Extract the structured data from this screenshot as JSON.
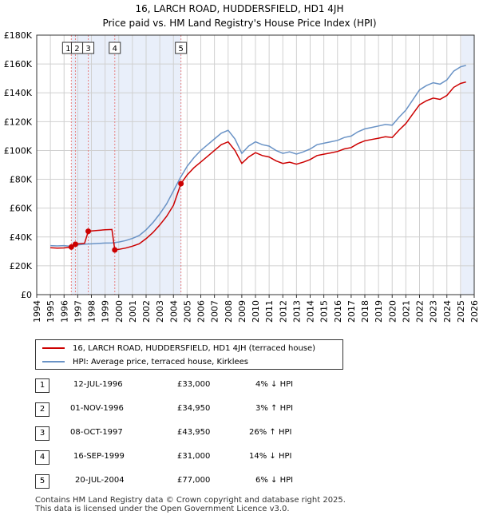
{
  "colors": {
    "price_paid": "#cc0000",
    "hpi": "#6a93c6",
    "shade": "#e9effa",
    "marker_line": "#e88080",
    "grid": "#d0d0d0"
  },
  "chart_data": {
    "type": "line",
    "title": "16, LARCH ROAD, HUDDERSFIELD, HD1 4JH",
    "subtitle": "Price paid vs. HM Land Registry's House Price Index (HPI)",
    "xlim": [
      1994,
      2026
    ],
    "ylim": [
      0,
      180000
    ],
    "x_ticks": [
      "1994",
      "1995",
      "1996",
      "1997",
      "1998",
      "1999",
      "2000",
      "2001",
      "2002",
      "2003",
      "2004",
      "2005",
      "2006",
      "2007",
      "2008",
      "2009",
      "2010",
      "2011",
      "2012",
      "2013",
      "2014",
      "2015",
      "2016",
      "2017",
      "2018",
      "2019",
      "2020",
      "2021",
      "2022",
      "2023",
      "2024",
      "2025",
      "2026"
    ],
    "y_ticks": [
      {
        "value": 0,
        "label": "£0"
      },
      {
        "value": 20000,
        "label": "£20K"
      },
      {
        "value": 40000,
        "label": "£40K"
      },
      {
        "value": 60000,
        "label": "£60K"
      },
      {
        "value": 80000,
        "label": "£80K"
      },
      {
        "value": 100000,
        "label": "£100K"
      },
      {
        "value": 120000,
        "label": "£120K"
      },
      {
        "value": 140000,
        "label": "£140K"
      },
      {
        "value": 160000,
        "label": "£160K"
      },
      {
        "value": 180000,
        "label": "£180K"
      }
    ],
    "shaded_ranges": [
      [
        1996.53,
        2004.55
      ],
      [
        2025.05,
        2026
      ]
    ],
    "series": [
      {
        "name": "HPI: Average price, terraced house, Kirklees",
        "color_key": "hpi",
        "x": [
          1995.0,
          1995.5,
          1996.0,
          1996.5,
          1997.0,
          1997.5,
          1998.0,
          1998.5,
          1999.0,
          1999.5,
          2000.0,
          2000.5,
          2001.0,
          2001.5,
          2002.0,
          2002.5,
          2003.0,
          2003.5,
          2004.0,
          2004.5,
          2005.0,
          2005.5,
          2006.0,
          2006.5,
          2007.0,
          2007.5,
          2008.0,
          2008.5,
          2009.0,
          2009.5,
          2010.0,
          2010.5,
          2011.0,
          2011.5,
          2012.0,
          2012.5,
          2013.0,
          2013.5,
          2014.0,
          2014.5,
          2015.0,
          2015.5,
          2016.0,
          2016.5,
          2017.0,
          2017.5,
          2018.0,
          2018.5,
          2019.0,
          2019.5,
          2020.0,
          2020.5,
          2021.0,
          2021.5,
          2022.0,
          2022.5,
          2023.0,
          2023.5,
          2024.0,
          2024.5,
          2025.0,
          2025.4
        ],
        "y": [
          34000,
          33800,
          34000,
          33500,
          34500,
          35000,
          35200,
          35500,
          35800,
          35900,
          36500,
          37500,
          39000,
          41000,
          45000,
          50000,
          56000,
          63000,
          72000,
          81000,
          89000,
          95000,
          100000,
          104000,
          108000,
          112000,
          114000,
          108000,
          98000,
          103000,
          106000,
          104000,
          103000,
          100000,
          98000,
          99000,
          97500,
          99000,
          101000,
          104000,
          105000,
          106000,
          107000,
          109000,
          110000,
          113000,
          115000,
          116000,
          117000,
          118000,
          117500,
          123000,
          128000,
          135000,
          142000,
          145000,
          147000,
          146000,
          149000,
          155000,
          158000,
          159000
        ]
      },
      {
        "name": "16, LARCH ROAD, HUDDERSFIELD, HD1 4JH (terraced house)",
        "color_key": "price_paid",
        "x": [
          1995.0,
          1995.5,
          1996.0,
          1996.53,
          1996.7,
          1996.83,
          1997.0,
          1997.5,
          1997.77,
          1998.0,
          1998.5,
          1999.0,
          1999.5,
          1999.71,
          2000.0,
          2000.5,
          2001.0,
          2001.5,
          2002.0,
          2002.5,
          2003.0,
          2003.5,
          2004.0,
          2004.55,
          2005.0,
          2005.5,
          2006.0,
          2006.5,
          2007.0,
          2007.5,
          2008.0,
          2008.5,
          2009.0,
          2009.5,
          2010.0,
          2010.5,
          2011.0,
          2011.5,
          2012.0,
          2012.5,
          2013.0,
          2013.5,
          2014.0,
          2014.5,
          2015.0,
          2015.5,
          2016.0,
          2016.5,
          2017.0,
          2017.5,
          2018.0,
          2018.5,
          2019.0,
          2019.5,
          2020.0,
          2020.5,
          2021.0,
          2021.5,
          2022.0,
          2022.5,
          2023.0,
          2023.5,
          2024.0,
          2024.5,
          2025.0,
          2025.4
        ],
        "y": [
          32500,
          32300,
          32400,
          33000,
          34000,
          34950,
          35200,
          35600,
          43950,
          44200,
          44600,
          45000,
          45200,
          31000,
          31400,
          32300,
          33600,
          35300,
          38800,
          43100,
          48300,
          54300,
          62000,
          77000,
          83000,
          88000,
          92000,
          96000,
          100000,
          104000,
          106000,
          100000,
          91000,
          95500,
          98500,
          96500,
          95500,
          92800,
          91000,
          91900,
          90500,
          91900,
          93700,
          96500,
          97400,
          98300,
          99300,
          101100,
          102000,
          104800,
          106700,
          107600,
          108500,
          109500,
          109000,
          114100,
          118700,
          125200,
          131700,
          134500,
          136300,
          135400,
          138200,
          143800,
          146500,
          147500
        ]
      }
    ],
    "sale_markers": [
      {
        "num": "1",
        "x": 1996.53,
        "y": 33000
      },
      {
        "num": "2",
        "x": 1996.83,
        "y": 34950
      },
      {
        "num": "3",
        "x": 1997.77,
        "y": 43950
      },
      {
        "num": "4",
        "x": 1999.71,
        "y": 31000
      },
      {
        "num": "5",
        "x": 2004.55,
        "y": 77000
      }
    ]
  },
  "legend": {
    "price_paid": "16, LARCH ROAD, HUDDERSFIELD, HD1 4JH (terraced house)",
    "hpi": "HPI: Average price, terraced house, Kirklees"
  },
  "sales_table": [
    {
      "num": "1",
      "date": "12-JUL-1996",
      "price": "£33,000",
      "hpi": "4% ↓ HPI"
    },
    {
      "num": "2",
      "date": "01-NOV-1996",
      "price": "£34,950",
      "hpi": "3% ↑ HPI"
    },
    {
      "num": "3",
      "date": "08-OCT-1997",
      "price": "£43,950",
      "hpi": "26% ↑ HPI"
    },
    {
      "num": "4",
      "date": "16-SEP-1999",
      "price": "£31,000",
      "hpi": "14% ↓ HPI"
    },
    {
      "num": "5",
      "date": "20-JUL-2004",
      "price": "£77,000",
      "hpi": "6% ↓ HPI"
    }
  ],
  "footer": {
    "line1": "Contains HM Land Registry data © Crown copyright and database right 2025.",
    "line2": "This data is licensed under the Open Government Licence v3.0."
  }
}
